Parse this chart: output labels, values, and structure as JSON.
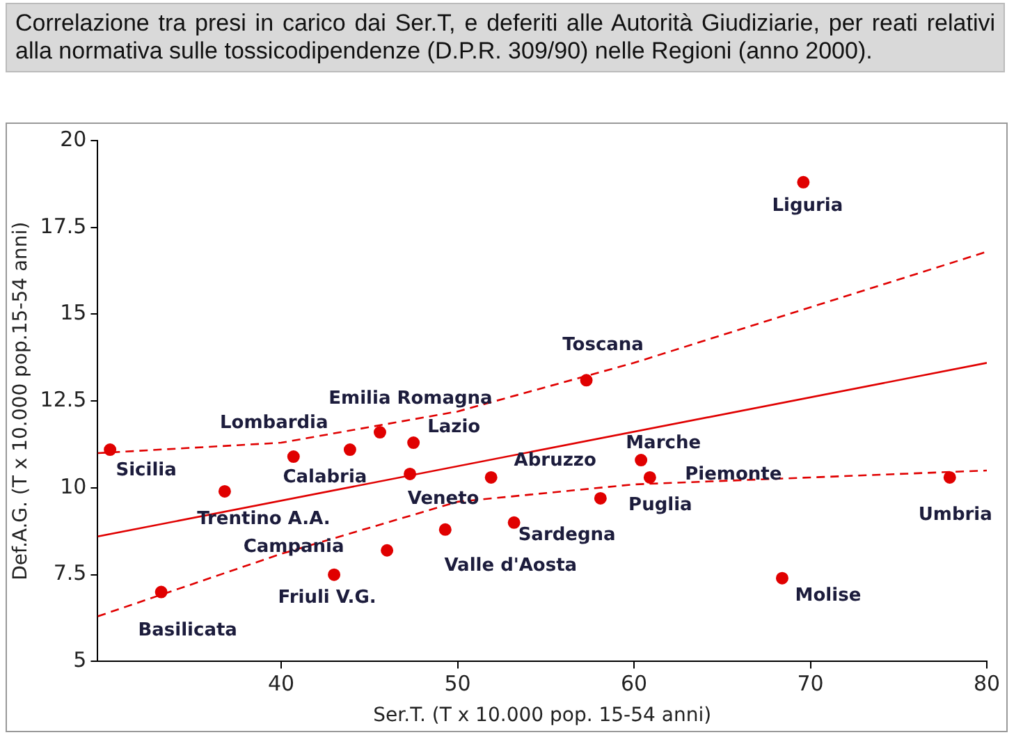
{
  "chart_data": {
    "type": "scatter",
    "title": "Correlazione tra presi in carico dai Ser.T, e deferiti alle Autorità Giudiziarie, per reati relativi alla normativa sulle tossicodipendenze (D.P.R. 309/90) nelle Regioni (anno 2000).",
    "xlabel": "Ser.T. (T x 10.000 pop. 15-54 anni)",
    "ylabel": "Def.A.G. (T x 10.000 pop.15-54 anni)",
    "xlim": [
      29.6,
      80
    ],
    "xticks": [
      40,
      50,
      60,
      70,
      80
    ],
    "ylim": [
      5,
      20
    ],
    "yticks": [
      5,
      7.5,
      10,
      12.5,
      15,
      17.5,
      20
    ],
    "grid": false,
    "legend": false,
    "series": [
      {
        "marker": "circle",
        "color": "#e00000",
        "x": [
          69.6,
          57.3,
          60.4,
          60.9,
          77.9,
          58.1,
          68.4,
          30.3,
          33.2,
          36.8,
          40.7,
          43.9,
          45.6,
          47.5,
          47.3,
          46.0,
          43.0,
          49.3,
          51.9,
          53.2
        ],
        "values": [
          18.8,
          13.1,
          10.8,
          10.3,
          10.3,
          9.7,
          7.4,
          11.1,
          7.0,
          9.9,
          10.9,
          11.1,
          11.6,
          11.3,
          10.4,
          8.2,
          7.5,
          8.8,
          10.3,
          9.0
        ]
      },
      {
        "type": "line",
        "color": "#e00000",
        "line_style": "solid",
        "x": [
          29.6,
          80
        ],
        "values": [
          8.6,
          13.6
        ]
      },
      {
        "type": "line",
        "color": "#e00000",
        "line_style": "dashed",
        "x": [
          29.6,
          40,
          50,
          60,
          70,
          80
        ],
        "values": [
          11.0,
          11.3,
          12.2,
          13.6,
          15.2,
          16.8
        ]
      },
      {
        "type": "line",
        "color": "#e00000",
        "line_style": "dashed",
        "x": [
          29.6,
          40,
          50,
          60,
          70,
          80
        ],
        "values": [
          6.3,
          8.1,
          9.6,
          10.1,
          10.3,
          10.5
        ]
      }
    ],
    "annotations": [
      {
        "text": "Liguria",
        "x": 69.6,
        "y": 18.8
      },
      {
        "text": "Toscana",
        "x": 57.3,
        "y": 13.1
      },
      {
        "text": "Marche",
        "x": 60.4,
        "y": 10.8
      },
      {
        "text": "Piemonte",
        "x": 60.9,
        "y": 10.3
      },
      {
        "text": "Umbria",
        "x": 77.9,
        "y": 10.3
      },
      {
        "text": "Puglia",
        "x": 58.1,
        "y": 9.7
      },
      {
        "text": "Molise",
        "x": 68.4,
        "y": 7.4
      },
      {
        "text": "Sicilia",
        "x": 30.3,
        "y": 11.1
      },
      {
        "text": "Basilicata",
        "x": 33.2,
        "y": 7.0
      },
      {
        "text": "Trentino A.A.",
        "x": 36.8,
        "y": 9.9
      },
      {
        "text": "Lombardia",
        "x": 40.7,
        "y": 10.9
      },
      {
        "text": "Calabria",
        "x": 43.9,
        "y": 11.1
      },
      {
        "text": "Emilia Romagna",
        "x": 45.6,
        "y": 11.6
      },
      {
        "text": "Lazio",
        "x": 47.5,
        "y": 11.3
      },
      {
        "text": "Veneto",
        "x": 47.3,
        "y": 10.4
      },
      {
        "text": "Campania",
        "x": 46.0,
        "y": 8.2
      },
      {
        "text": "Friuli V.G.",
        "x": 43.0,
        "y": 7.5
      },
      {
        "text": "Valle d'Aosta",
        "x": 49.3,
        "y": 8.8
      },
      {
        "text": "Abruzzo",
        "x": 51.9,
        "y": 10.3
      },
      {
        "text": "Sardegna",
        "x": 53.2,
        "y": 9.0
      }
    ]
  }
}
